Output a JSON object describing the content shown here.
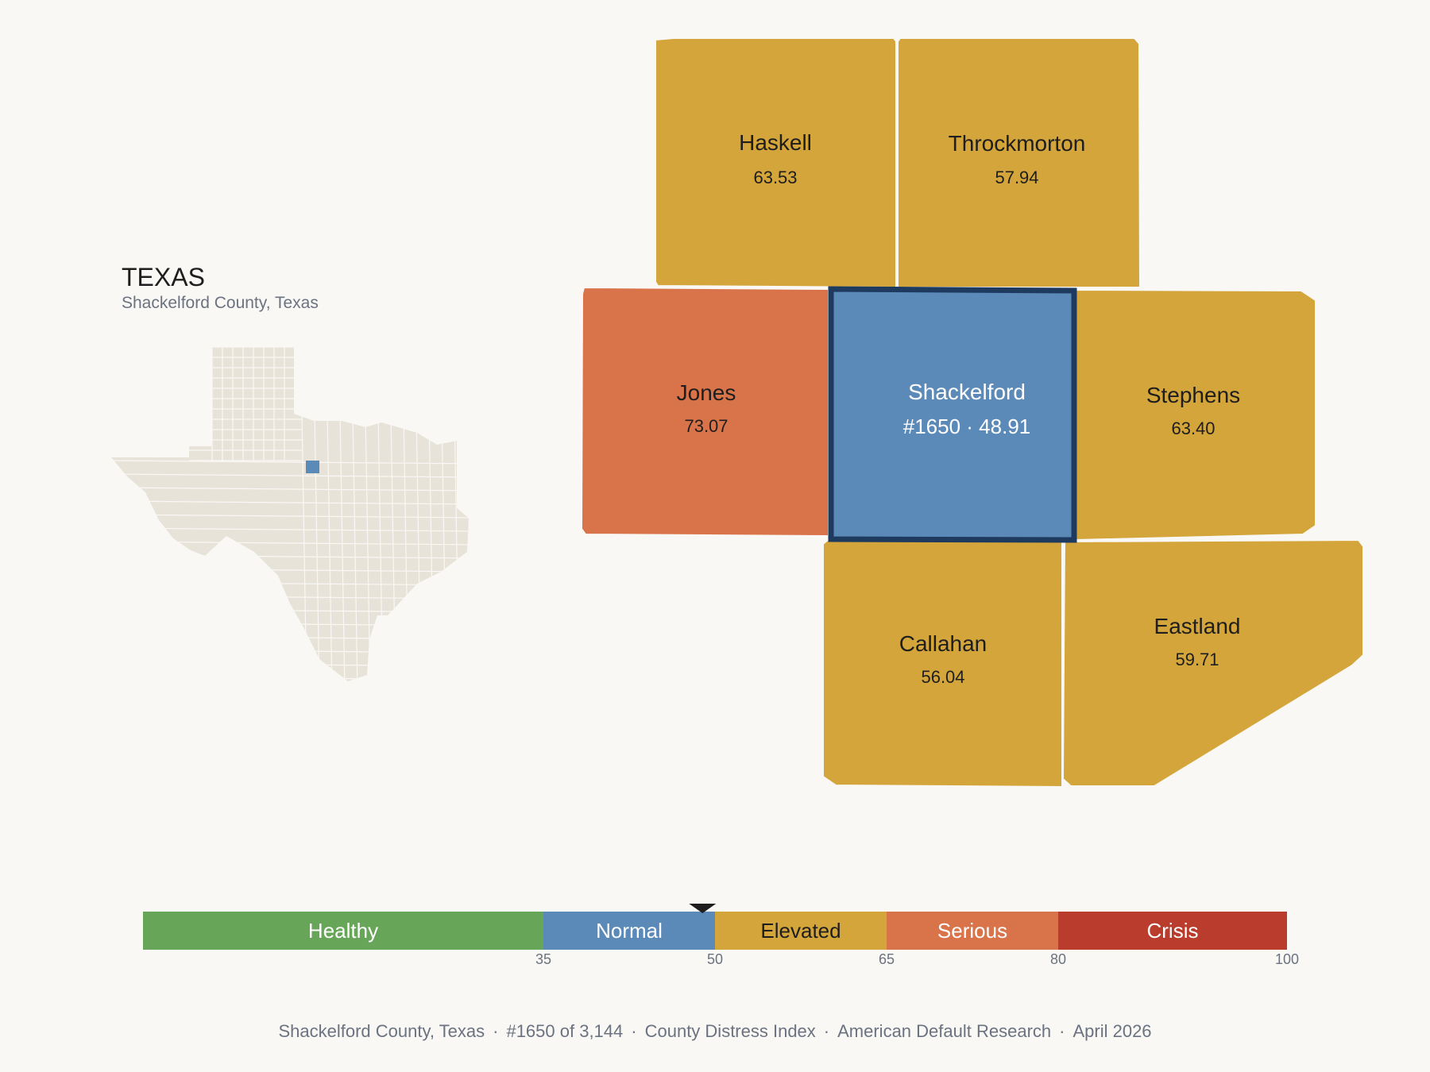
{
  "state": {
    "name": "TEXAS",
    "subtitle": "Shackelford County, Texas"
  },
  "colors": {
    "healthy": "#67a659",
    "normal": "#5b8ab8",
    "elevated": "#d4a53a",
    "serious": "#d9744a",
    "crisis": "#b93c2c",
    "highlight_border": "#1f3a5f",
    "inset_fill": "#e8e3d8",
    "inset_highlight": "#5b8ab8"
  },
  "counties": [
    {
      "name": "Haskell",
      "value": "63.53",
      "category": "elevated"
    },
    {
      "name": "Throckmorton",
      "value": "57.94",
      "category": "elevated"
    },
    {
      "name": "Jones",
      "value": "73.07",
      "category": "serious"
    },
    {
      "name": "Shackelford",
      "value": "#1650 · 48.91",
      "category": "normal",
      "selected": true
    },
    {
      "name": "Stephens",
      "value": "63.40",
      "category": "elevated"
    },
    {
      "name": "Callahan",
      "value": "56.04",
      "category": "elevated"
    },
    {
      "name": "Eastland",
      "value": "59.71",
      "category": "elevated"
    }
  ],
  "scale": {
    "min": 0,
    "max": 100,
    "marker_value": 48.91,
    "segments": [
      {
        "label": "Healthy",
        "from": 0,
        "to": 35,
        "category": "healthy"
      },
      {
        "label": "Normal",
        "from": 35,
        "to": 50,
        "category": "normal"
      },
      {
        "label": "Elevated",
        "from": 50,
        "to": 65,
        "category": "elevated"
      },
      {
        "label": "Serious",
        "from": 65,
        "to": 80,
        "category": "serious"
      },
      {
        "label": "Crisis",
        "from": 80,
        "to": 100,
        "category": "crisis"
      }
    ],
    "ticks": [
      "35",
      "50",
      "65",
      "80",
      "100"
    ]
  },
  "footer": {
    "county": "Shackelford County, Texas",
    "rank": "#1650 of 3,144",
    "index": "County Distress Index",
    "source": "American Default Research",
    "date": "April 2026",
    "separator": "·"
  }
}
